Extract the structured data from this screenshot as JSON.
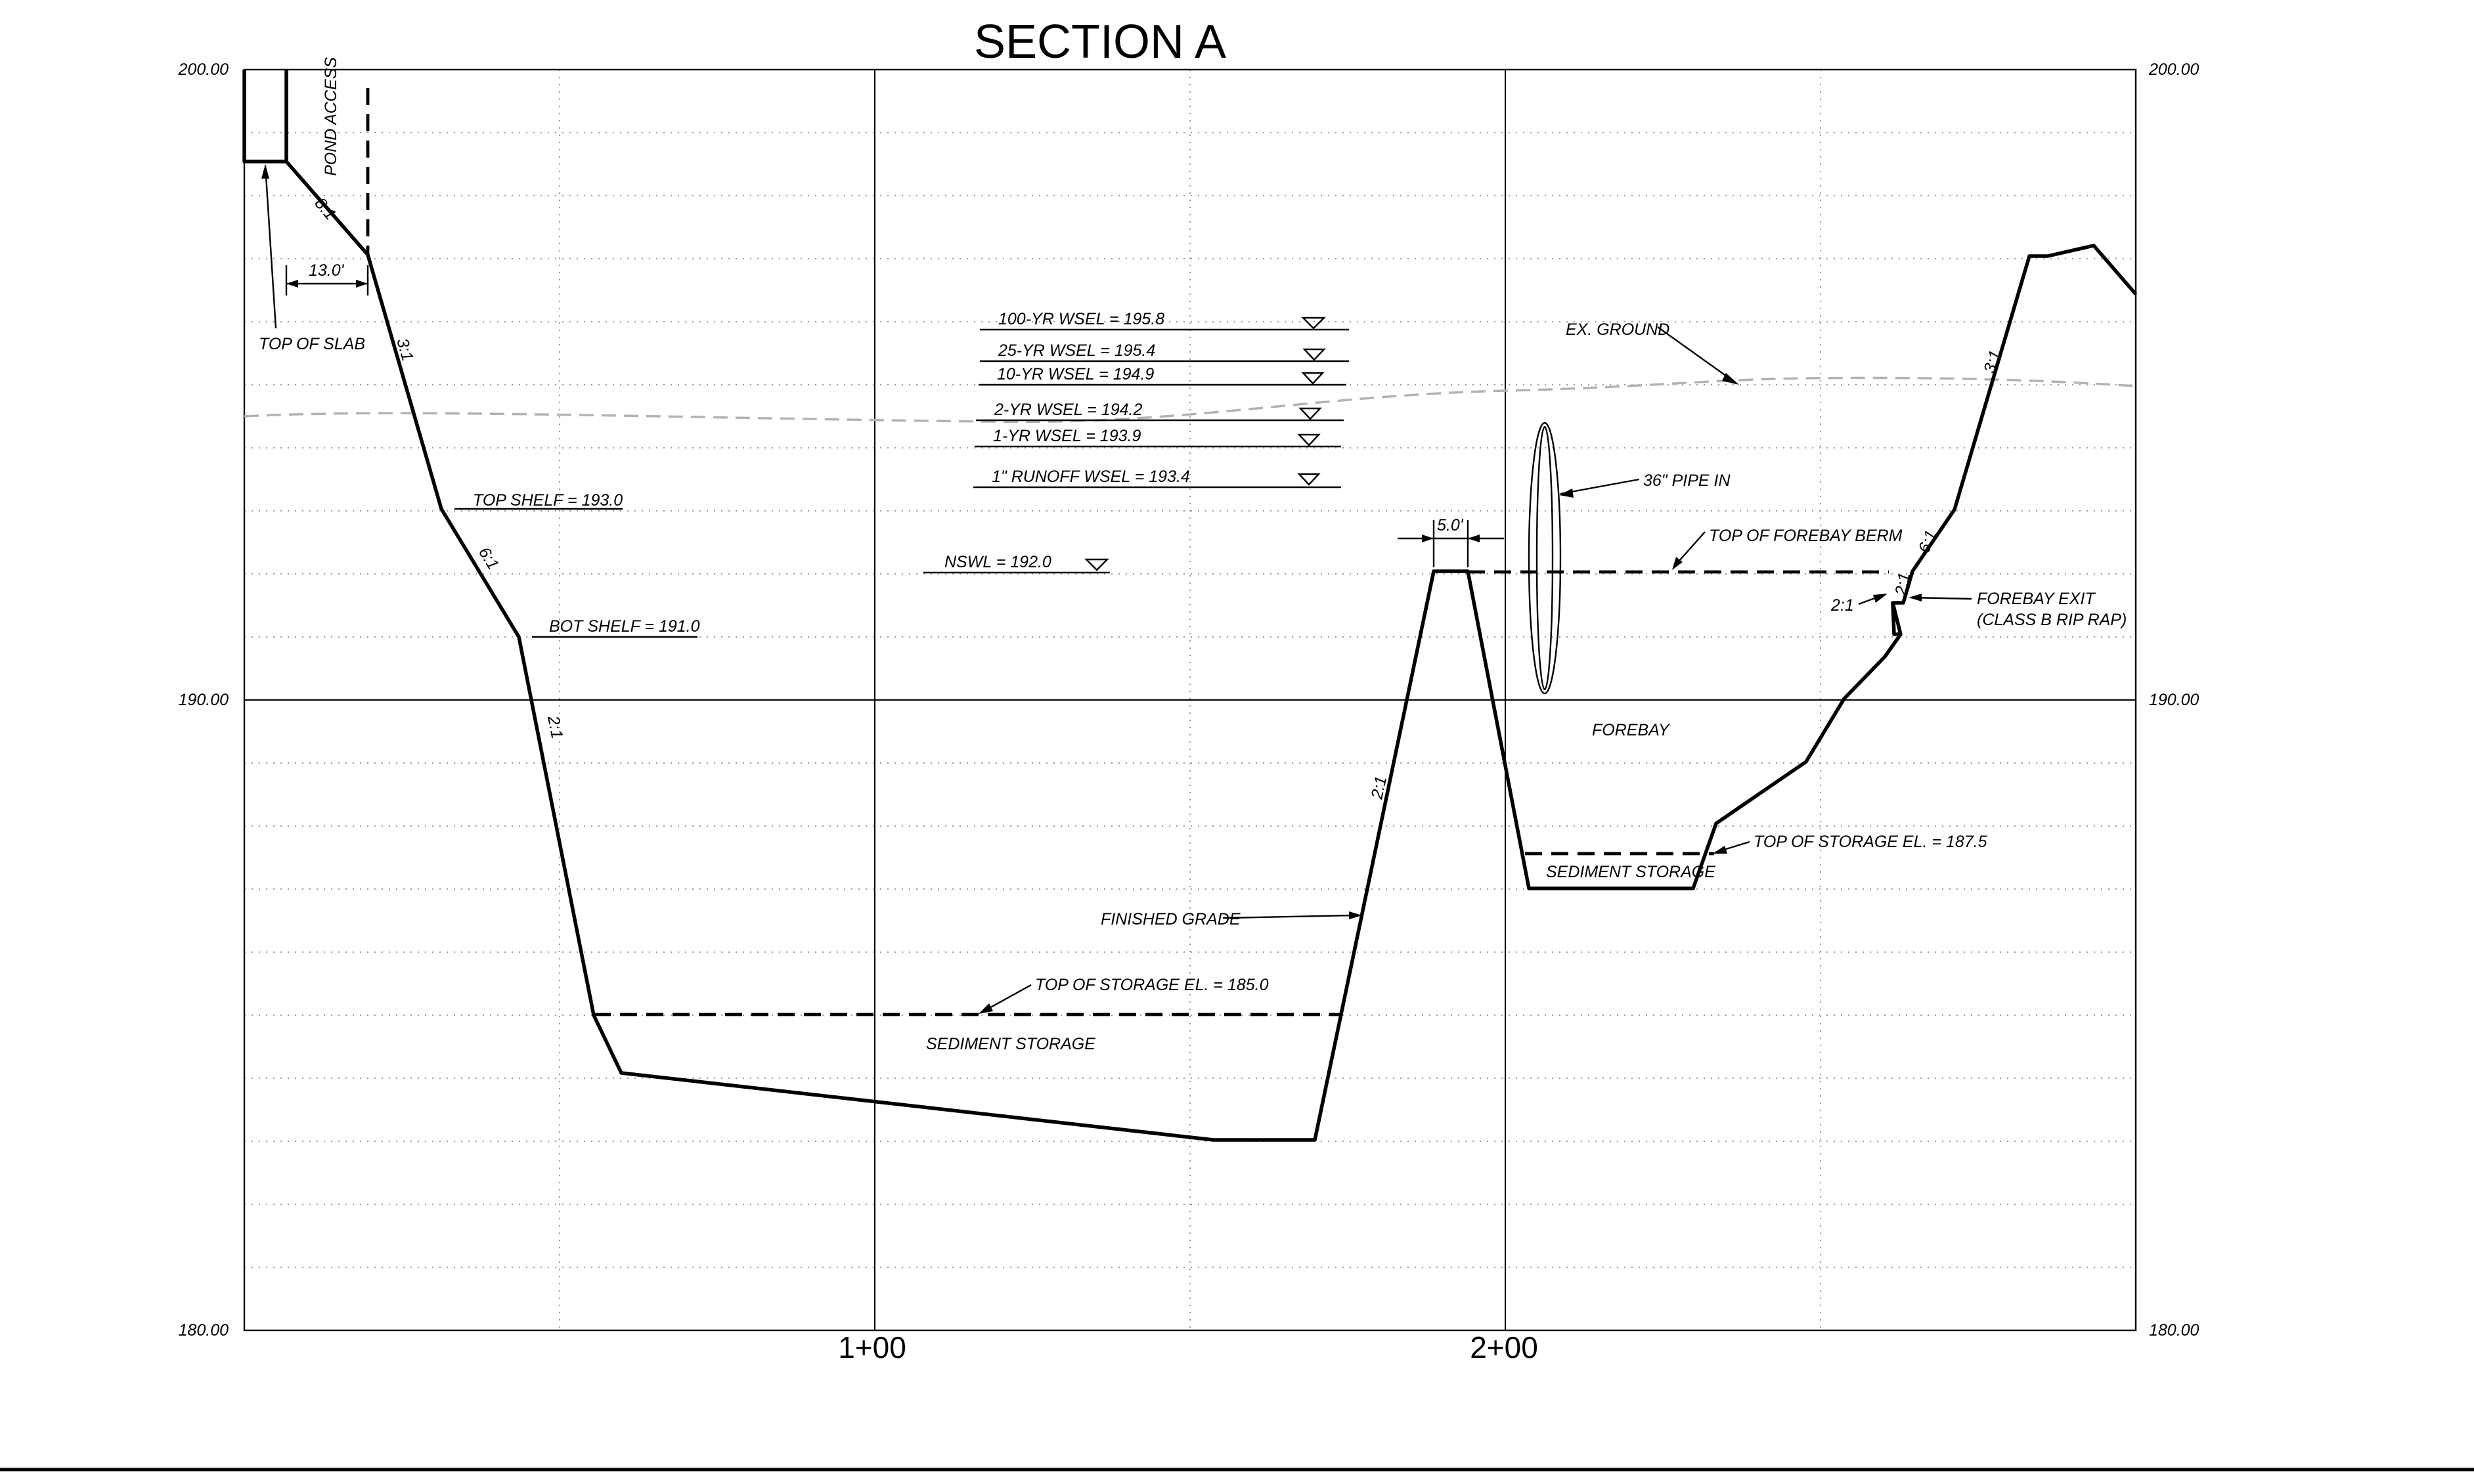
{
  "title": "SECTION A",
  "axes": {
    "y_left_labels": [
      "200.00",
      "190.00",
      "180.00"
    ],
    "y_right_labels": [
      "200.00",
      "190.00",
      "180.00"
    ],
    "station_labels": [
      "1+00",
      "2+00"
    ]
  },
  "labels": {
    "pond_access": "POND ACCESS",
    "top_of_slab": "TOP OF SLAB",
    "dim_13": "13.0'",
    "slope_8_1": "8:1",
    "slope_3_1_left": "3:1",
    "slope_6_1_left": "6:1",
    "slope_2_1_left": "2:1",
    "top_shelf": "TOP SHELF = 193.0",
    "bot_shelf": "BOT SHELF = 191.0",
    "wsel_100": "100-YR WSEL = 195.8",
    "wsel_25": "25-YR WSEL = 195.4",
    "wsel_10": "10-YR WSEL = 194.9",
    "wsel_2": "2-YR WSEL = 194.2",
    "wsel_1": "1-YR WSEL = 193.9",
    "runoff": "1\" RUNOFF WSEL = 193.4",
    "nswl": "NSWL = 192.0",
    "ex_ground": "EX. GROUND",
    "pipe_in": "36\" PIPE IN",
    "dim_5": "5.0'",
    "top_forebay_berm": "TOP OF FOREBAY BERM",
    "forebay": "FOREBAY",
    "forebay_exit_1": "FOREBAY EXIT",
    "forebay_exit_2": "(CLASS B RIP RAP)",
    "slope_2_1_exit_left": "2:1",
    "slope_2_1_exit_right": "2:1",
    "slope_6_1_right": "6:1",
    "slope_3_1_right": "3:1",
    "slope_2_1_berm": "2:1",
    "sediment_storage_forebay": "SEDIMENT STORAGE",
    "top_storage_187": "TOP OF STORAGE EL. = 187.5",
    "finished_grade": "FINISHED GRADE",
    "top_storage_185": "TOP OF STORAGE EL. = 185.0",
    "sediment_storage_main": "SEDIMENT STORAGE"
  }
}
